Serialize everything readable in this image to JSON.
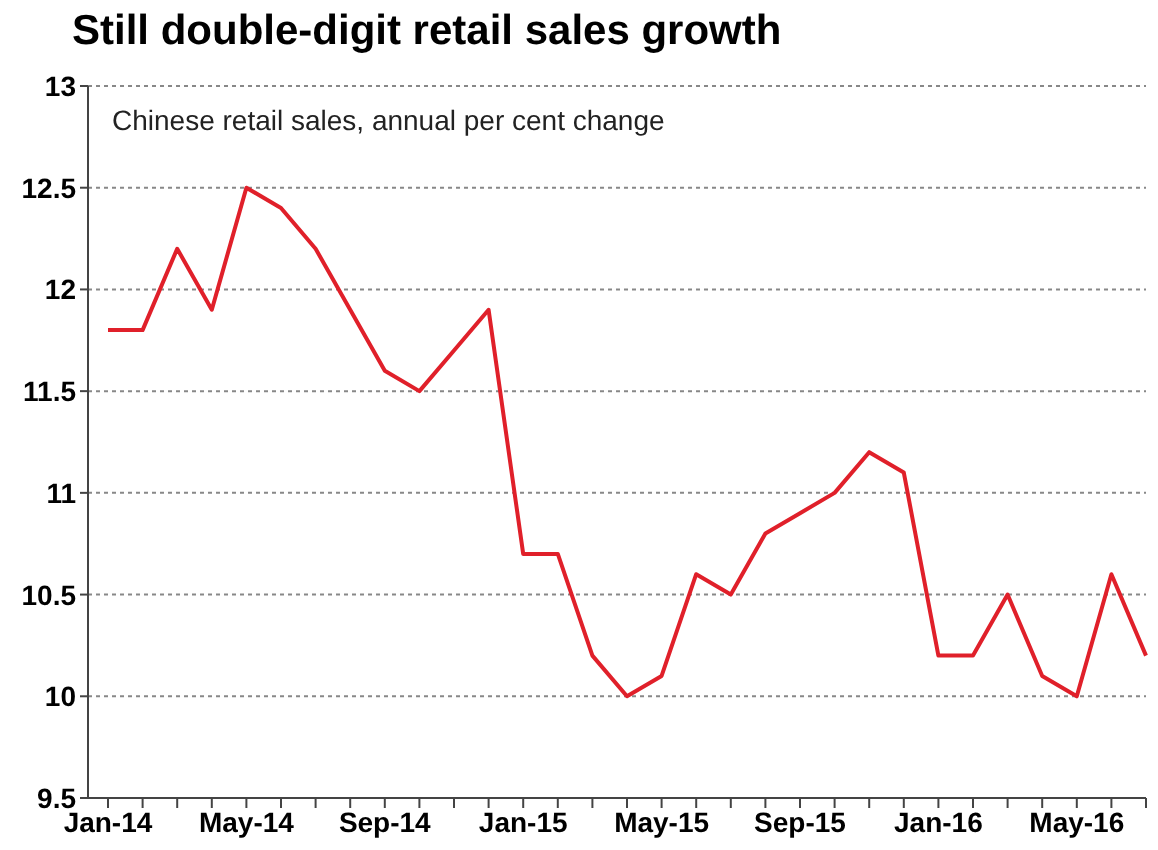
{
  "chart_data": {
    "type": "line",
    "title": "Still double-digit retail sales growth",
    "subtitle": "Chinese retail sales, annual per cent change",
    "categories": [
      "Jan-14",
      null,
      null,
      null,
      "May-14",
      null,
      null,
      null,
      "Sep-14",
      null,
      null,
      null,
      "Jan-15",
      null,
      null,
      null,
      "May-15",
      null,
      null,
      null,
      "Sep-15",
      null,
      null,
      null,
      "Jan-16",
      null,
      null,
      null,
      "May-16",
      null,
      null
    ],
    "series": [
      {
        "color": "#e0202a",
        "values": [
          11.8,
          11.8,
          12.2,
          11.9,
          12.5,
          12.4,
          12.2,
          11.9,
          11.6,
          11.5,
          11.7,
          11.9,
          10.7,
          10.7,
          10.2,
          10.0,
          10.1,
          10.6,
          10.5,
          10.8,
          10.9,
          11.0,
          11.2,
          11.1,
          10.2,
          10.2,
          10.5,
          10.1,
          10.0,
          10.6,
          10.2
        ]
      }
    ],
    "ylim": [
      9.5,
      13
    ],
    "yticks": [
      9.5,
      10,
      10.5,
      11,
      11.5,
      12,
      12.5,
      13
    ],
    "grid": "y",
    "marker": "none",
    "line_style": "solid"
  }
}
